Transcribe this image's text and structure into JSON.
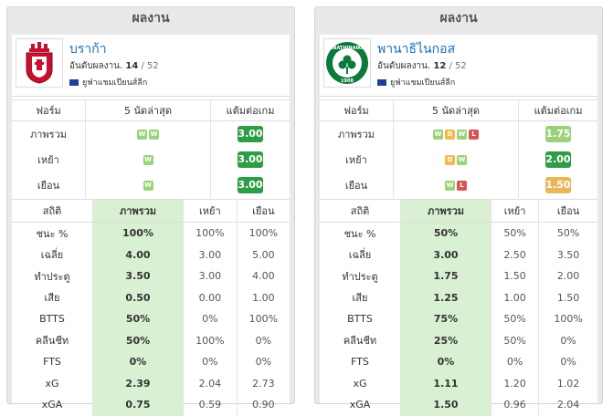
{
  "panels": [
    {
      "title": "ผลงาน",
      "team": "บราก้า",
      "rank_label": "อันดับผลงาน.",
      "rank": "14",
      "rank_total": "/ 52",
      "league": "ยูฟ่าแชมเปียนส์ลีก",
      "form_headers": [
        "ฟอร์ม",
        "5 นัดล่าสุด",
        "แต้มต่อเกม"
      ],
      "form_rows": [
        {
          "label": "ภาพรวม",
          "results": [
            "W",
            "W"
          ],
          "ppg": "3.00",
          "ppg_color": "#2e9d45"
        },
        {
          "label": "เหย้า",
          "results": [
            "W"
          ],
          "ppg": "3.00",
          "ppg_color": "#2e9d45"
        },
        {
          "label": "เยือน",
          "results": [
            "W"
          ],
          "ppg": "3.00",
          "ppg_color": "#2e9d45"
        }
      ],
      "stats_headers": [
        "สถิติ",
        "ภาพรวม",
        "เหย้า",
        "เยือน"
      ],
      "stats": [
        {
          "label": "ชนะ %",
          "overall": "100%",
          "home": "100%",
          "away": "100%"
        },
        {
          "label": "เฉลี่ย",
          "overall": "4.00",
          "home": "3.00",
          "away": "5.00"
        },
        {
          "label": "ทำประตู",
          "overall": "3.50",
          "home": "3.00",
          "away": "4.00"
        },
        {
          "label": "เสีย",
          "overall": "0.50",
          "home": "0.00",
          "away": "1.00"
        },
        {
          "label": "BTTS",
          "overall": "50%",
          "home": "0%",
          "away": "100%"
        },
        {
          "label": "คลีนชีท",
          "overall": "50%",
          "home": "100%",
          "away": "0%"
        },
        {
          "label": "FTS",
          "overall": "0%",
          "home": "0%",
          "away": "0%"
        },
        {
          "label": "xG",
          "overall": "2.39",
          "home": "2.04",
          "away": "2.73"
        },
        {
          "label": "xGA",
          "overall": "0.75",
          "home": "0.59",
          "away": "0.90"
        }
      ]
    },
    {
      "title": "ผลงาน",
      "team": "พานาธิไนกอส",
      "rank_label": "อันดับผลงาน.",
      "rank": "12",
      "rank_total": "/ 52",
      "league": "ยูฟ่าแชมเปียนส์ลีก",
      "logo_text": "PANATHINAIKOS",
      "logo_year": "1908",
      "form_headers": [
        "ฟอร์ม",
        "5 นัดล่าสุด",
        "แต้มต่อเกม"
      ],
      "form_rows": [
        {
          "label": "ภาพรวม",
          "results": [
            "W",
            "D",
            "W",
            "L"
          ],
          "ppg": "1.75",
          "ppg_color": "#9ad17a"
        },
        {
          "label": "เหย้า",
          "results": [
            "D",
            "W"
          ],
          "ppg": "2.00",
          "ppg_color": "#2e9d45"
        },
        {
          "label": "เยือน",
          "results": [
            "W",
            "L"
          ],
          "ppg": "1.50",
          "ppg_color": "#e9b65a"
        }
      ],
      "stats_headers": [
        "สถิติ",
        "ภาพรวม",
        "เหย้า",
        "เยือน"
      ],
      "stats": [
        {
          "label": "ชนะ %",
          "overall": "50%",
          "home": "50%",
          "away": "50%"
        },
        {
          "label": "เฉลี่ย",
          "overall": "3.00",
          "home": "2.50",
          "away": "3.50"
        },
        {
          "label": "ทำประตู",
          "overall": "1.75",
          "home": "1.50",
          "away": "2.00"
        },
        {
          "label": "เสีย",
          "overall": "1.25",
          "home": "1.00",
          "away": "1.50"
        },
        {
          "label": "BTTS",
          "overall": "75%",
          "home": "50%",
          "away": "100%"
        },
        {
          "label": "คลีนชีท",
          "overall": "25%",
          "home": "50%",
          "away": "0%"
        },
        {
          "label": "FTS",
          "overall": "0%",
          "home": "0%",
          "away": "0%"
        },
        {
          "label": "xG",
          "overall": "1.11",
          "home": "1.20",
          "away": "1.02"
        },
        {
          "label": "xGA",
          "overall": "1.50",
          "home": "0.96",
          "away": "2.04"
        }
      ]
    }
  ]
}
